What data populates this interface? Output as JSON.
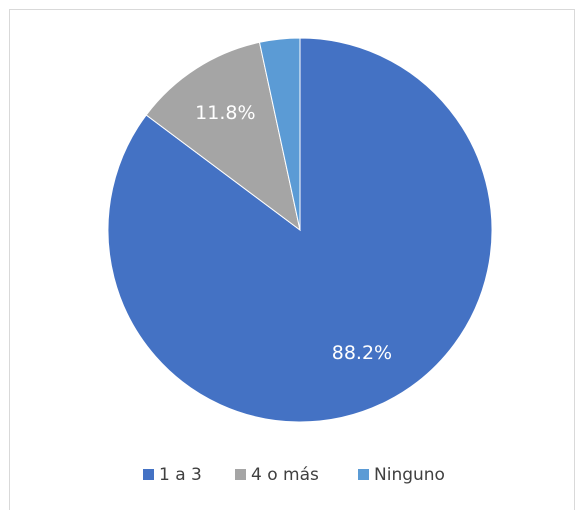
{
  "chart_data": {
    "type": "pie",
    "categories": [
      "1 a 3",
      "4 o más",
      "Ninguno"
    ],
    "values": [
      88.2,
      11.8,
      3.5
    ],
    "value_labels": [
      "88.2%",
      "11.8%",
      null
    ],
    "colors": [
      "#4472c4",
      "#a5a5a5",
      "#5b9bd5"
    ],
    "legend": "bottom"
  }
}
